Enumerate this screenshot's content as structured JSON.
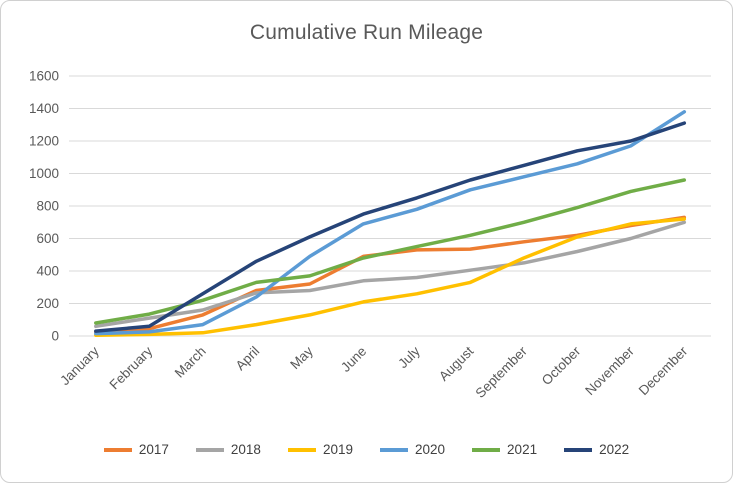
{
  "chart_data": {
    "type": "line",
    "title": "Cumulative Run Mileage",
    "xlabel": "",
    "ylabel": "",
    "ylim": [
      0,
      1600
    ],
    "y_tick_step": 200,
    "y_ticks": [
      0,
      200,
      400,
      600,
      800,
      1000,
      1200,
      1400,
      1600
    ],
    "grid": true,
    "legend_position": "bottom",
    "categories": [
      "January",
      "February",
      "March",
      "April",
      "May",
      "June",
      "July",
      "August",
      "September",
      "October",
      "November",
      "December"
    ],
    "series": [
      {
        "name": "2017",
        "color": "#ED7D31",
        "values": [
          25,
          45,
          130,
          280,
          320,
          490,
          530,
          535,
          580,
          620,
          680,
          730
        ]
      },
      {
        "name": "2018",
        "color": "#A5A5A5",
        "values": [
          60,
          110,
          160,
          265,
          280,
          340,
          360,
          405,
          450,
          520,
          600,
          700
        ]
      },
      {
        "name": "2019",
        "color": "#FFC000",
        "values": [
          5,
          10,
          20,
          70,
          130,
          210,
          260,
          330,
          480,
          610,
          690,
          720
        ]
      },
      {
        "name": "2020",
        "color": "#5B9BD5",
        "values": [
          15,
          25,
          70,
          240,
          490,
          690,
          780,
          900,
          980,
          1060,
          1170,
          1380
        ]
      },
      {
        "name": "2021",
        "color": "#70AD47",
        "values": [
          80,
          135,
          220,
          330,
          370,
          480,
          550,
          620,
          700,
          790,
          890,
          960
        ]
      },
      {
        "name": "2022",
        "color": "#264478",
        "values": [
          30,
          60,
          260,
          460,
          610,
          750,
          850,
          960,
          1050,
          1140,
          1200,
          1310
        ]
      }
    ]
  },
  "styles": {
    "title_color": "#595959",
    "axis_label_color": "#595959",
    "gridline_color": "#d9d9d9",
    "background": "#ffffff"
  }
}
